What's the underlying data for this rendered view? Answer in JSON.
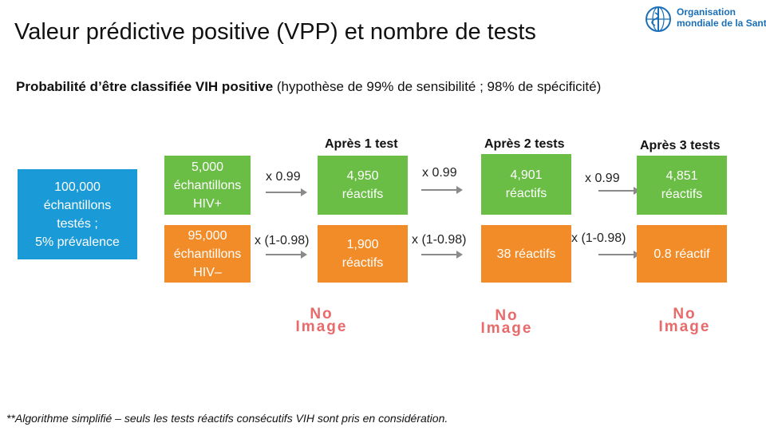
{
  "title": "Valeur prédictive positive (VPP) et nombre de tests",
  "logo": {
    "line1": "Organisation",
    "line2": "mondiale de la Santé"
  },
  "subtitle": {
    "bold": "Probabilité d’être classifiée VIH positive",
    "normal": " (hypothèse de 99% de sensibilité ; 98% de spécificité)"
  },
  "headers": {
    "test1": "Après 1 test",
    "test2": "Après 2 tests",
    "test3": "Après 3 tests"
  },
  "start_box": {
    "line1": "100,000",
    "line2": "échantillons",
    "line3": "testés ;",
    "line4": "5% prévalence"
  },
  "hiv_pos": {
    "line1": "5,000",
    "line2": "échantillons",
    "line3": "HIV+"
  },
  "hiv_neg": {
    "line1": "95,000",
    "line2": "échantillons",
    "line3": "HIV–"
  },
  "multipliers": {
    "sensitivity": "x 0.99",
    "false_positive": "x (1-0.98)"
  },
  "green_results": [
    {
      "value": "4,950",
      "unit": "réactifs"
    },
    {
      "value": "4,901",
      "unit": "réactifs"
    },
    {
      "value": "4,851",
      "unit": "réactifs"
    }
  ],
  "orange_results": [
    {
      "line1": "1,900",
      "line2": "réactifs"
    },
    {
      "line1": "38 réactifs"
    },
    {
      "line1": "0.8 réactif"
    }
  ],
  "placeholder": {
    "line1": "No",
    "line2": "Image"
  },
  "footnote": "**Algorithme simplifié – seuls les tests réactifs consécutifs VIH sont pris en considération.",
  "colors": {
    "blue": "#1a9ad6",
    "green": "#6abd45",
    "orange": "#f28c28",
    "logo": "#1a6fb8"
  }
}
